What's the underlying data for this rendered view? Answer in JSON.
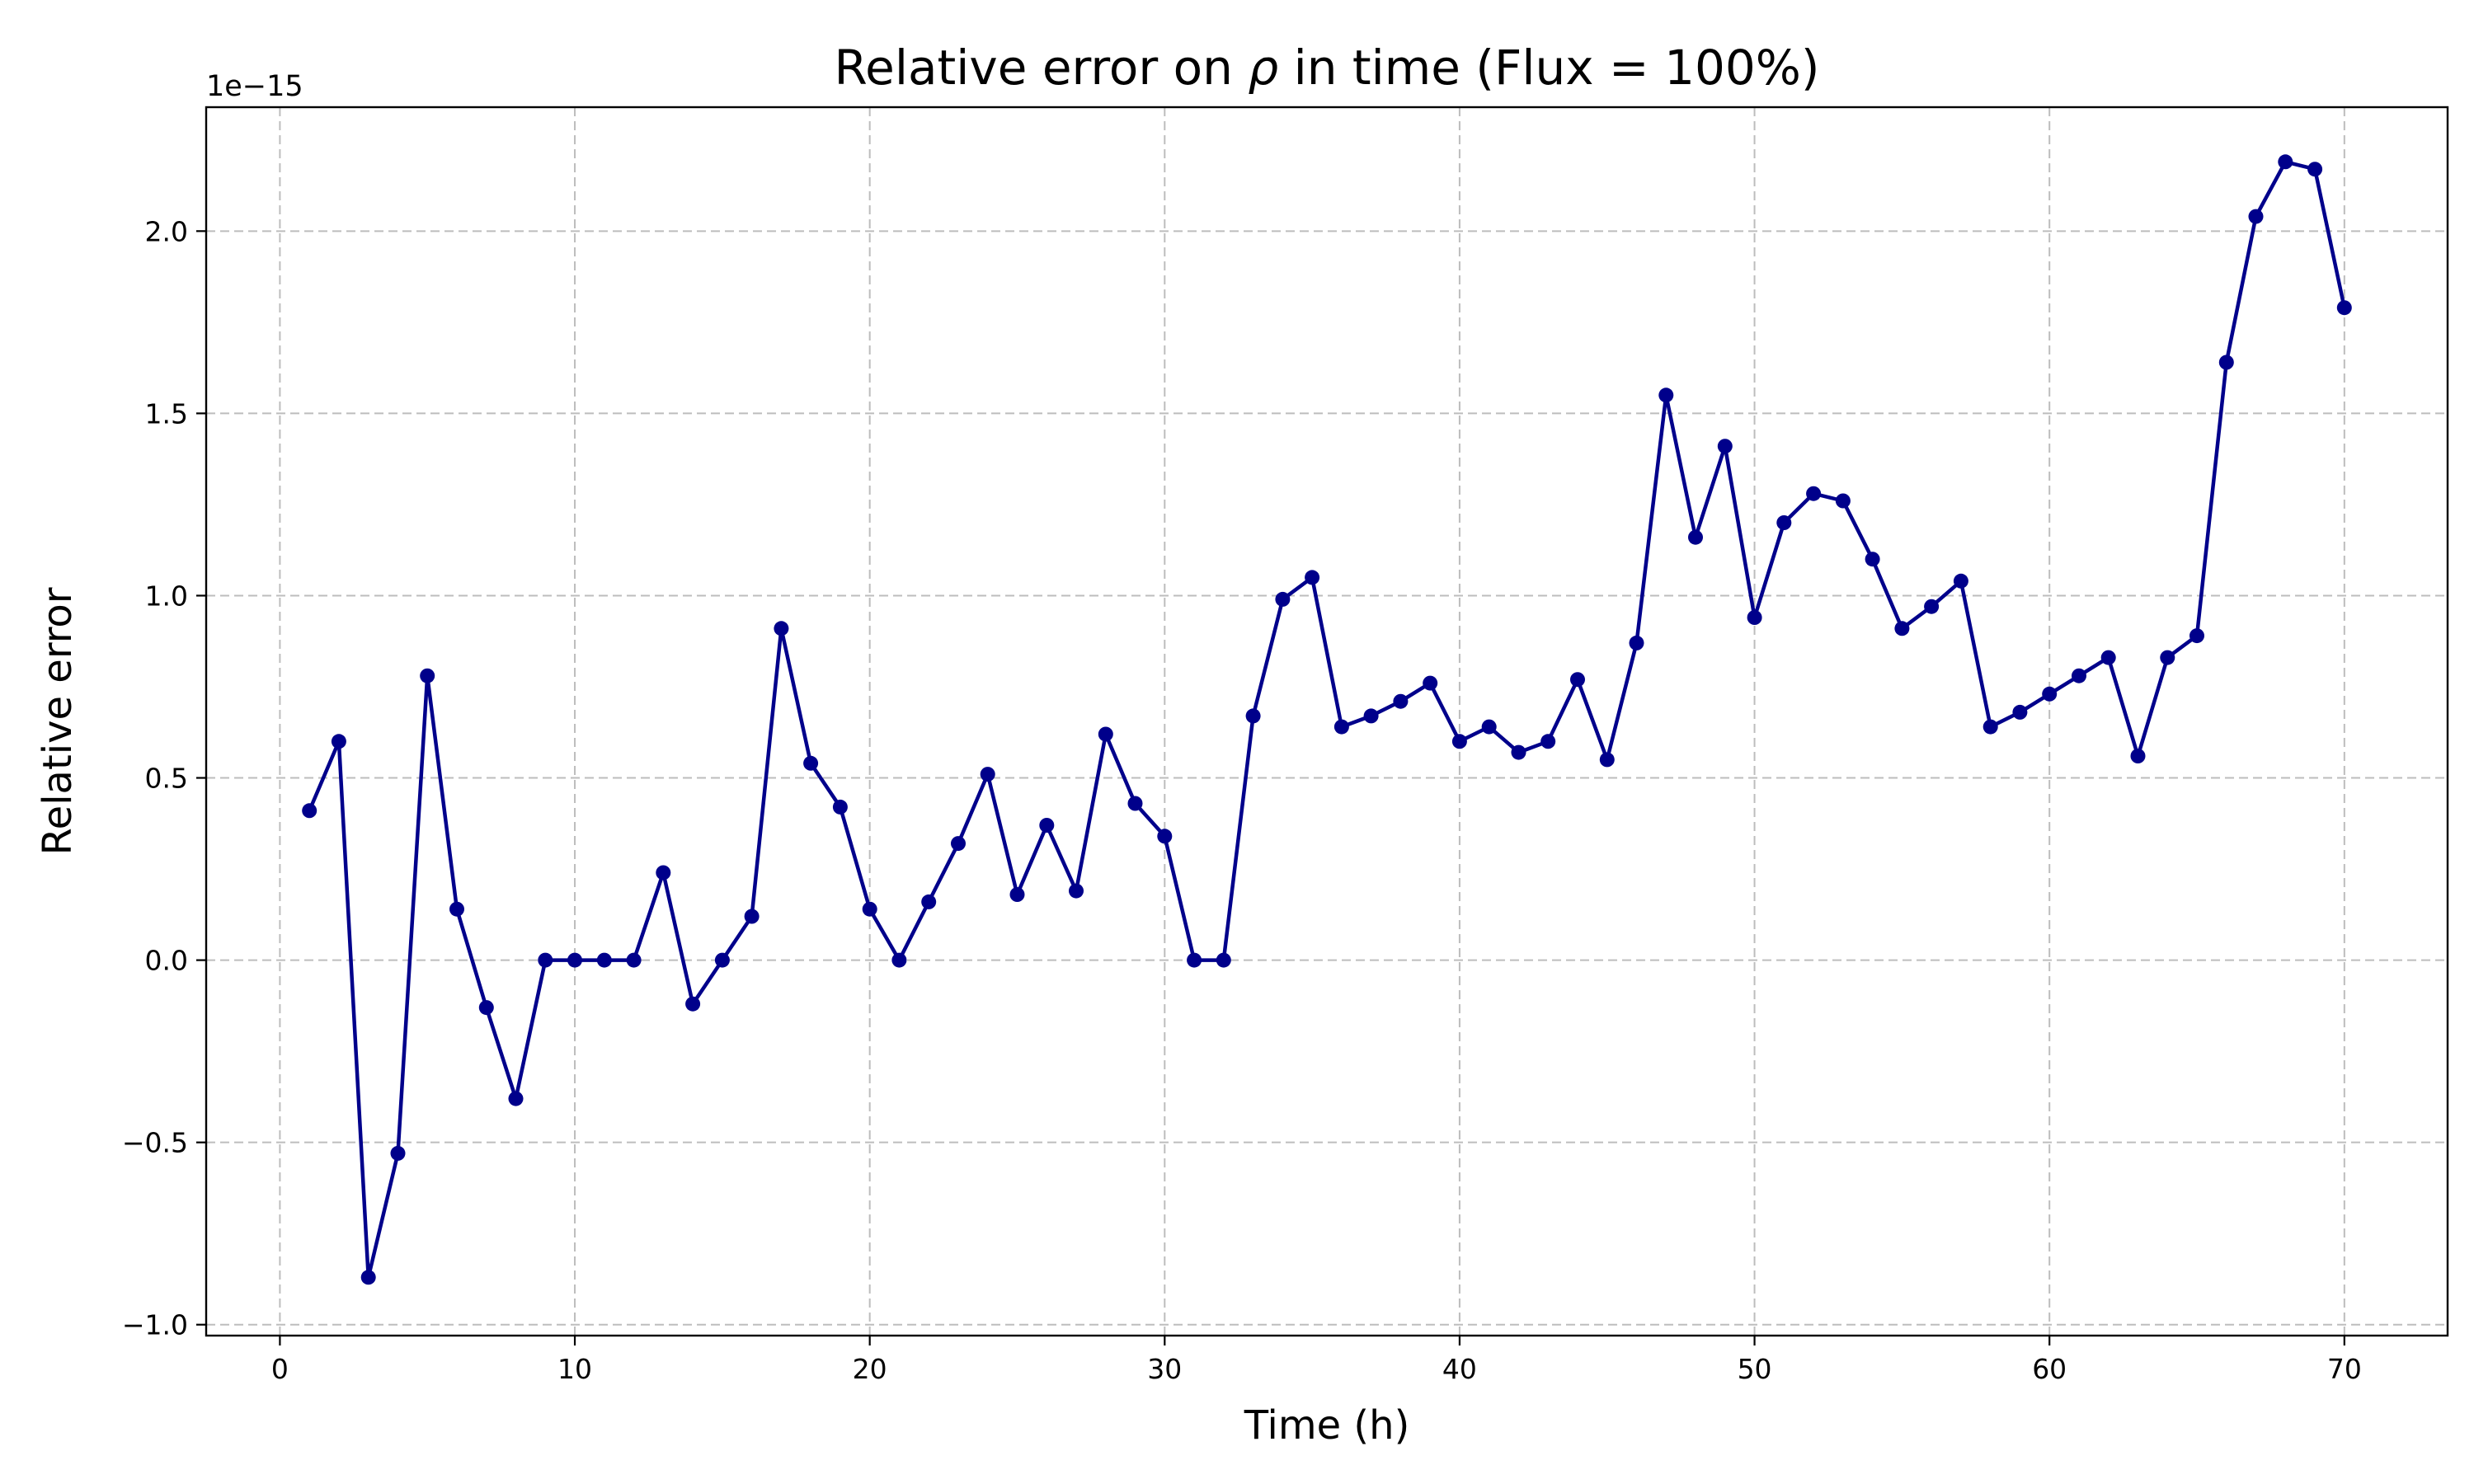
{
  "chart_data": {
    "type": "line",
    "title_parts": [
      "Relative error on ",
      "ρ",
      " in time (Flux = 100%)"
    ],
    "xlabel": "Time (h)",
    "ylabel": "Relative error",
    "y_offset_label": "1e−15",
    "xlim": [
      -2.5,
      73.5
    ],
    "ylim": [
      -1.03,
      2.34
    ],
    "x_ticks": [
      0,
      10,
      20,
      30,
      40,
      50,
      60,
      70
    ],
    "x_tick_labels": [
      "0",
      "10",
      "20",
      "30",
      "40",
      "50",
      "60",
      "70"
    ],
    "y_ticks": [
      -1.0,
      -0.5,
      0.0,
      0.5,
      1.0,
      1.5,
      2.0
    ],
    "y_tick_labels": [
      "−1.0",
      "−0.5",
      "0.0",
      "0.5",
      "1.0",
      "1.5",
      "2.0"
    ],
    "grid": true,
    "colors": {
      "series": "#00008b",
      "grid": "#bdbdbd",
      "axes": "#000000"
    },
    "series": [
      {
        "x": [
          1,
          2,
          3,
          4,
          5,
          6,
          7,
          8,
          9,
          10,
          11,
          12,
          13,
          14,
          15,
          16,
          17,
          18,
          19,
          20,
          21,
          22,
          23,
          24,
          25,
          26,
          27,
          28,
          29,
          30,
          31,
          32,
          33,
          34,
          35,
          36,
          37,
          38,
          39,
          40,
          41,
          42,
          43,
          44,
          45,
          46,
          47,
          48,
          49,
          50,
          51,
          52,
          53,
          54,
          55,
          56,
          57,
          58,
          59,
          60,
          61,
          62,
          63,
          64,
          65,
          66,
          67,
          68,
          69,
          70
        ],
        "values": [
          0.41,
          0.6,
          -0.87,
          -0.53,
          0.78,
          0.14,
          -0.13,
          -0.38,
          0.0,
          0.0,
          0.0,
          0.0,
          0.24,
          -0.12,
          0.0,
          0.12,
          0.91,
          0.54,
          0.42,
          0.14,
          0.0,
          0.16,
          0.32,
          0.51,
          0.18,
          0.37,
          0.19,
          0.62,
          0.43,
          0.34,
          0.0,
          0.0,
          0.67,
          0.99,
          1.05,
          0.64,
          0.67,
          0.71,
          0.76,
          0.6,
          0.64,
          0.57,
          0.6,
          0.77,
          0.55,
          0.87,
          1.55,
          1.16,
          1.41,
          0.94,
          1.2,
          1.28,
          1.26,
          1.1,
          0.91,
          0.97,
          1.04,
          0.64,
          0.68,
          0.73,
          0.78,
          0.83,
          0.56,
          0.83,
          0.89,
          1.64,
          2.04,
          2.19,
          2.17,
          1.79
        ]
      }
    ]
  }
}
